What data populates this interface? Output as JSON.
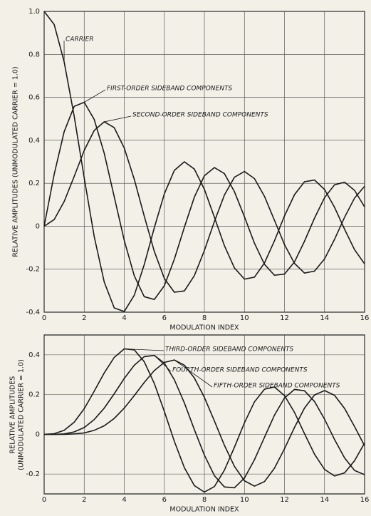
{
  "chart_data": [
    {
      "type": "line",
      "x_label": "MODULATION INDEX",
      "y_label": "RELATIVE AMPLITUDES (UNMODULATED CARRIER = 1.0)",
      "x": [
        0,
        0.5,
        1,
        1.5,
        2,
        2.5,
        3,
        3.5,
        4,
        4.5,
        5,
        5.5,
        6,
        6.5,
        7,
        7.5,
        8,
        8.5,
        9,
        9.5,
        10,
        10.5,
        11,
        11.5,
        12,
        12.5,
        13,
        13.5,
        14,
        14.5,
        15,
        15.5,
        16
      ],
      "xlim": [
        0,
        16
      ],
      "xticks": [
        0,
        2,
        4,
        6,
        8,
        10,
        12,
        14,
        16
      ],
      "ylim": [
        -0.4,
        1.0
      ],
      "yticks": [
        -0.4,
        -0.2,
        0,
        0.2,
        0.4,
        0.6,
        0.8,
        {
          "value": 1,
          "label": "1.0"
        }
      ],
      "grid": true,
      "series": [
        {
          "name": "CARRIER",
          "color": "#1a1a1a",
          "values": [
            1.0,
            0.939,
            0.765,
            0.512,
            0.224,
            -0.048,
            -0.26,
            -0.38,
            -0.397,
            -0.321,
            -0.178,
            -0.007,
            0.151,
            0.26,
            0.3,
            0.266,
            0.172,
            0.042,
            -0.09,
            -0.194,
            -0.246,
            -0.237,
            -0.171,
            -0.068,
            0.048,
            0.147,
            0.207,
            0.215,
            0.171,
            0.088,
            -0.014,
            -0.109,
            -0.175
          ]
        },
        {
          "name": "FIRST-ORDER SIDEBAND COMPONENTS",
          "color": "#1a1a1a",
          "values": [
            0,
            0.242,
            0.44,
            0.558,
            0.577,
            0.497,
            0.339,
            0.137,
            -0.066,
            -0.231,
            -0.328,
            -0.341,
            -0.277,
            -0.154,
            -0.005,
            0.135,
            0.235,
            0.273,
            0.245,
            0.161,
            0.044,
            -0.079,
            -0.177,
            -0.228,
            -0.223,
            -0.166,
            -0.07,
            0.038,
            0.133,
            0.193,
            0.205,
            0.167,
            0.09
          ]
        },
        {
          "name": "SECOND-ORDER SIDEBAND COMPONENTS",
          "color": "#1a1a1a",
          "values": [
            0,
            0.031,
            0.115,
            0.232,
            0.353,
            0.446,
            0.486,
            0.459,
            0.364,
            0.218,
            0.047,
            -0.117,
            -0.243,
            -0.307,
            -0.301,
            -0.23,
            -0.113,
            0.022,
            0.145,
            0.228,
            0.255,
            0.222,
            0.139,
            0.028,
            -0.085,
            -0.173,
            -0.218,
            -0.209,
            -0.152,
            -0.061,
            0.042,
            0.131,
            0.186
          ]
        }
      ]
    },
    {
      "type": "line",
      "x_label": "MODULATION INDEX",
      "y_label": [
        "RELATIVE AMPLITUDES",
        "(UNMODULATED CARRIER = 1.0)"
      ],
      "x": [
        0,
        0.5,
        1,
        1.5,
        2,
        2.5,
        3,
        3.5,
        4,
        4.5,
        5,
        5.5,
        6,
        6.5,
        7,
        7.5,
        8,
        8.5,
        9,
        9.5,
        10,
        10.5,
        11,
        11.5,
        12,
        12.5,
        13,
        13.5,
        14,
        14.5,
        15,
        15.5,
        16
      ],
      "xlim": [
        0,
        16
      ],
      "xticks": [
        0,
        2,
        4,
        6,
        8,
        10,
        12,
        14,
        16
      ],
      "ylim": [
        -0.3,
        0.5
      ],
      "yticks": [
        -0.2,
        0,
        0.2,
        0.4
      ],
      "grid": true,
      "series": [
        {
          "name": "THIRD-ORDER SIDEBAND COMPONENTS",
          "color": "#1a1a1a",
          "values": [
            0,
            0.003,
            0.02,
            0.061,
            0.129,
            0.217,
            0.309,
            0.387,
            0.43,
            0.425,
            0.365,
            0.256,
            0.115,
            -0.035,
            -0.168,
            -0.258,
            -0.291,
            -0.263,
            -0.181,
            -0.065,
            0.058,
            0.163,
            0.227,
            0.238,
            0.195,
            0.11,
            0.003,
            -0.1,
            -0.177,
            -0.21,
            -0.194,
            -0.133,
            -0.044
          ]
        },
        {
          "name": "FOURTH-ORDER SIDEBAND COMPONENTS",
          "color": "#1a1a1a",
          "values": [
            0,
            0.0,
            0.002,
            0.012,
            0.034,
            0.074,
            0.132,
            0.204,
            0.281,
            0.348,
            0.391,
            0.397,
            0.358,
            0.275,
            0.158,
            0.024,
            -0.105,
            -0.208,
            -0.265,
            -0.269,
            -0.22,
            -0.128,
            -0.015,
            0.096,
            0.183,
            0.226,
            0.219,
            0.165,
            0.076,
            -0.026,
            -0.119,
            -0.182,
            -0.203
          ]
        },
        {
          "name": "FIFTH-ORDER SIDEBAND COMPONENTS",
          "color": "#1a1a1a",
          "values": [
            0,
            0.0,
            0.0,
            0.002,
            0.007,
            0.02,
            0.043,
            0.08,
            0.132,
            0.195,
            0.261,
            0.321,
            0.362,
            0.374,
            0.348,
            0.284,
            0.186,
            0.067,
            -0.055,
            -0.161,
            -0.234,
            -0.261,
            -0.238,
            -0.171,
            -0.073,
            0.035,
            0.132,
            0.198,
            0.22,
            0.196,
            0.13,
            0.039,
            -0.058
          ]
        }
      ]
    }
  ]
}
